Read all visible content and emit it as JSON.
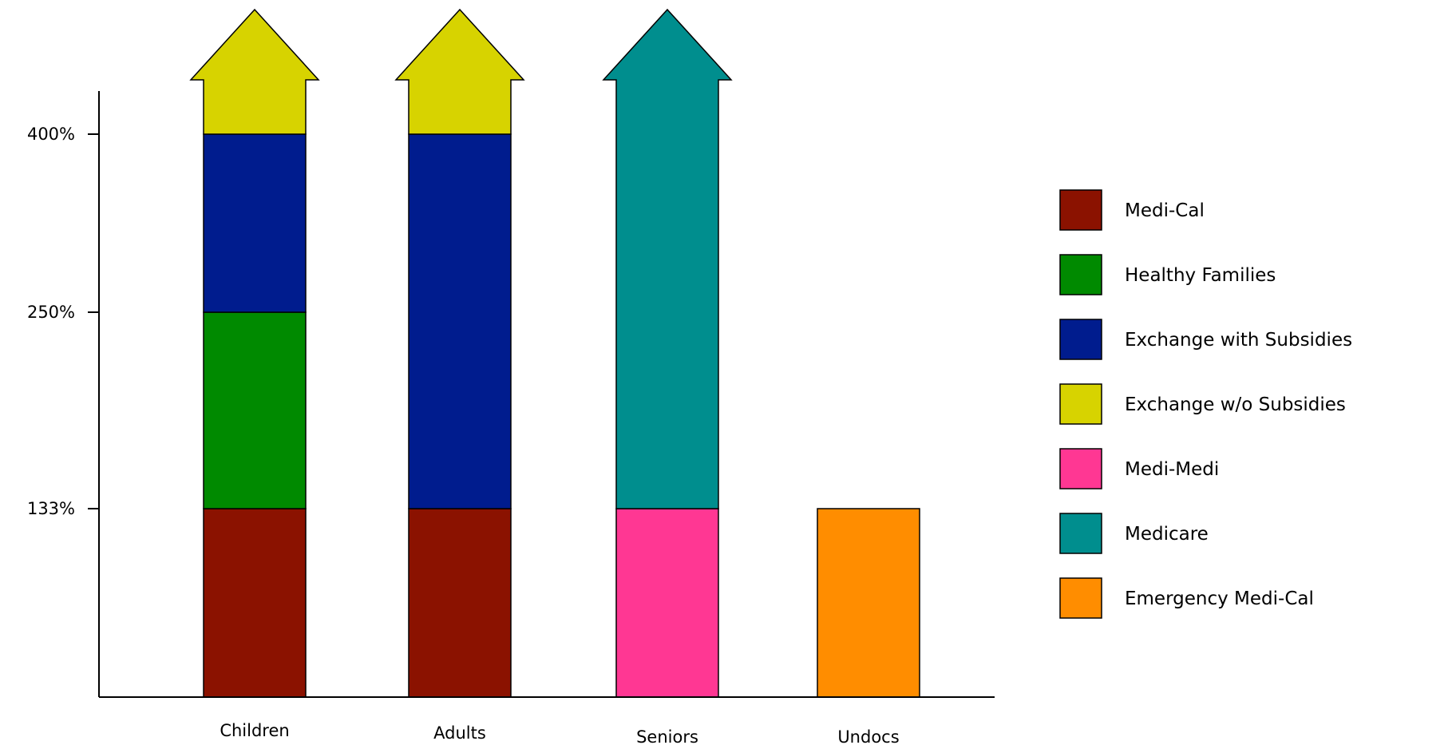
{
  "chart_data": {
    "type": "bar",
    "stacked": true,
    "title": "",
    "xlabel": "",
    "ylabel": "",
    "categories": [
      "Children",
      "Adults",
      "Seniors",
      "Undocs"
    ],
    "y_ticks": [
      {
        "value": 133,
        "label": "133%"
      },
      {
        "value": 250,
        "label": "250%"
      },
      {
        "value": 400,
        "label": "400%"
      }
    ],
    "ylim": [
      0,
      400
    ],
    "open_ended_top": {
      "Children": "Exchange w/o Subsidies",
      "Adults": "Exchange w/o Subsidies",
      "Seniors": "Medicare"
    },
    "bars": [
      {
        "category": "Children",
        "segments": [
          {
            "series": "Medi-Cal",
            "from": 0,
            "to": 133
          },
          {
            "series": "Healthy Families",
            "from": 133,
            "to": 250
          },
          {
            "series": "Exchange with Subsidies",
            "from": 250,
            "to": 400
          },
          {
            "series": "Exchange w/o Subsidies",
            "from": 400,
            "to": null
          }
        ]
      },
      {
        "category": "Adults",
        "segments": [
          {
            "series": "Medi-Cal",
            "from": 0,
            "to": 133
          },
          {
            "series": "Exchange with Subsidies",
            "from": 133,
            "to": 400
          },
          {
            "series": "Exchange w/o Subsidies",
            "from": 400,
            "to": null
          }
        ]
      },
      {
        "category": "Seniors",
        "segments": [
          {
            "series": "Medi-Medi",
            "from": 0,
            "to": 133
          },
          {
            "series": "Medicare",
            "from": 133,
            "to": null
          }
        ]
      },
      {
        "category": "Undocs",
        "segments": [
          {
            "series": "Emergency Medi-Cal",
            "from": 0,
            "to": 133
          }
        ]
      }
    ],
    "legend_position": "right",
    "legend": [
      {
        "name": "Medi-Cal",
        "color": "#8B1200"
      },
      {
        "name": "Healthy Families",
        "color": "#008A00"
      },
      {
        "name": "Exchange with Subsidies",
        "color": "#001C8E"
      },
      {
        "name": "Exchange w/o Subsidies",
        "color": "#D7D300"
      },
      {
        "name": "Medi-Medi",
        "color": "#FF3793"
      },
      {
        "name": "Medicare",
        "color": "#008E8E"
      },
      {
        "name": "Emergency Medi-Cal",
        "color": "#FF8D00"
      }
    ],
    "grid": false
  }
}
